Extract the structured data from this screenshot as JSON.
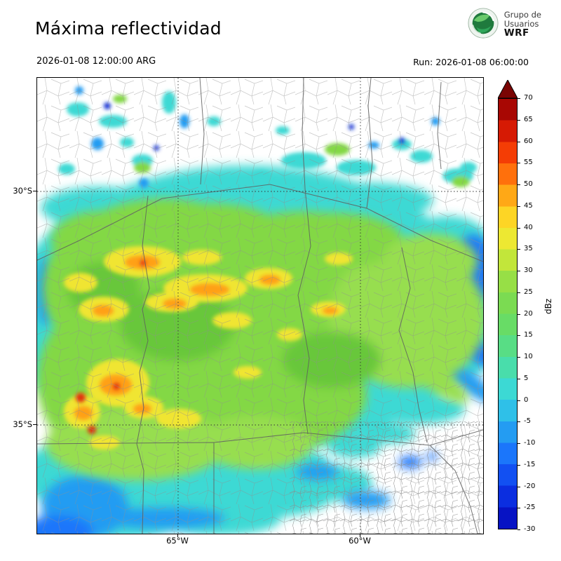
{
  "header": {
    "title": "Máxima reflectividad",
    "valid_time": "2026-01-08 12:00:00 ARG",
    "run_label": "Run: 2026-01-08 06:00:00"
  },
  "logo": {
    "line1": "Grupo de",
    "line2": "Usuarios",
    "line3": "WRF"
  },
  "axes": {
    "y_ticks": [
      "30°S",
      "35°S"
    ],
    "x_ticks": [
      "65°W",
      "60°W"
    ]
  },
  "colorbar": {
    "label": "dBz",
    "ticks": [
      70,
      65,
      60,
      55,
      50,
      45,
      40,
      35,
      30,
      25,
      20,
      15,
      10,
      5,
      0,
      -5,
      -10,
      -15,
      -20,
      -25,
      -30
    ],
    "colors_bottom_to_top": [
      "#0713c4",
      "#0b2ee0",
      "#1250f2",
      "#1b76fb",
      "#249cf2",
      "#2fc0e8",
      "#3cd9d4",
      "#49ddab",
      "#58dd85",
      "#68dc66",
      "#7bdb52",
      "#97df46",
      "#c2e63a",
      "#ede832",
      "#fdd525",
      "#ffa816",
      "#ff700c",
      "#f43d05",
      "#d61a04",
      "#a80703"
    ],
    "arrow_color": "#7a0403",
    "range": {
      "min": -30,
      "max": 70,
      "step": 5
    }
  },
  "chart_data": {
    "type": "heatmap",
    "title": "Máxima reflectividad",
    "variable": "maximum radar reflectivity",
    "units": "dBz",
    "valid": "2026-01-08 12:00:00 ARG",
    "run": "2026-01-08 06:00:00",
    "x_axis": {
      "ticks": [
        "65°W",
        "60°W"
      ]
    },
    "y_axis": {
      "ticks": [
        "30°S",
        "35°S"
      ]
    },
    "colorbar": {
      "min": -30,
      "max": 70,
      "step": 5,
      "extend": "max",
      "label": "dBz"
    },
    "gridlines": "dotted at 30°S, 35°S, 65°W, 60°W",
    "field_summary": "Widespread 20–35 dBz echoes over central Argentina with embedded 35–50 dBz cores in the west-center, cyan/blue 0–10 dBz fringes to the north and along southeast-oriented bands; scattered weak cells north of 30°S; mostly clear in the far southeast"
  }
}
